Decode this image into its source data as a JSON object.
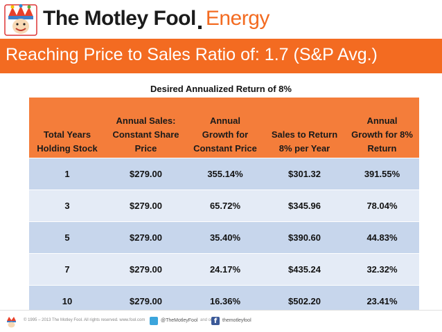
{
  "header": {
    "brand": "The Motley Fool",
    "brand_suffix": "Energy"
  },
  "title": "Reaching Price to Sales Ratio of: 1.7 (S&P Avg.)",
  "subtitle": "Desired Annualized Return of 8%",
  "table": {
    "columns": [
      [
        "Total Years",
        "Holding Stock"
      ],
      [
        "Annual Sales:",
        "Constant Share",
        "Price"
      ],
      [
        "Annual",
        "Growth for",
        "Constant Price"
      ],
      [
        "Sales to Return",
        "8% per Year"
      ],
      [
        "Annual",
        "Growth for 8%",
        "Return"
      ]
    ],
    "rows": [
      [
        "1",
        "$279.00",
        "355.14%",
        "$301.32",
        "391.55%"
      ],
      [
        "3",
        "$279.00",
        "65.72%",
        "$345.96",
        "78.04%"
      ],
      [
        "5",
        "$279.00",
        "35.40%",
        "$390.60",
        "44.83%"
      ],
      [
        "7",
        "$279.00",
        "24.17%",
        "$435.24",
        "32.32%"
      ],
      [
        "10",
        "$279.00",
        "16.36%",
        "$502.20",
        "23.41%"
      ]
    ]
  },
  "footer": {
    "copyright": "© 1995 – 2013 The Motley Fool. All rights reserved. www.fool.com",
    "twitter": "@TheMotleyFool",
    "and_on": "and on",
    "facebook_glyph": "f",
    "facebook": "themotleyfool"
  },
  "colors": {
    "accent": "#f36b21",
    "header_cell": "#f47d3a",
    "row_dark": "#c7d6ec",
    "row_light": "#e4ebf6"
  }
}
